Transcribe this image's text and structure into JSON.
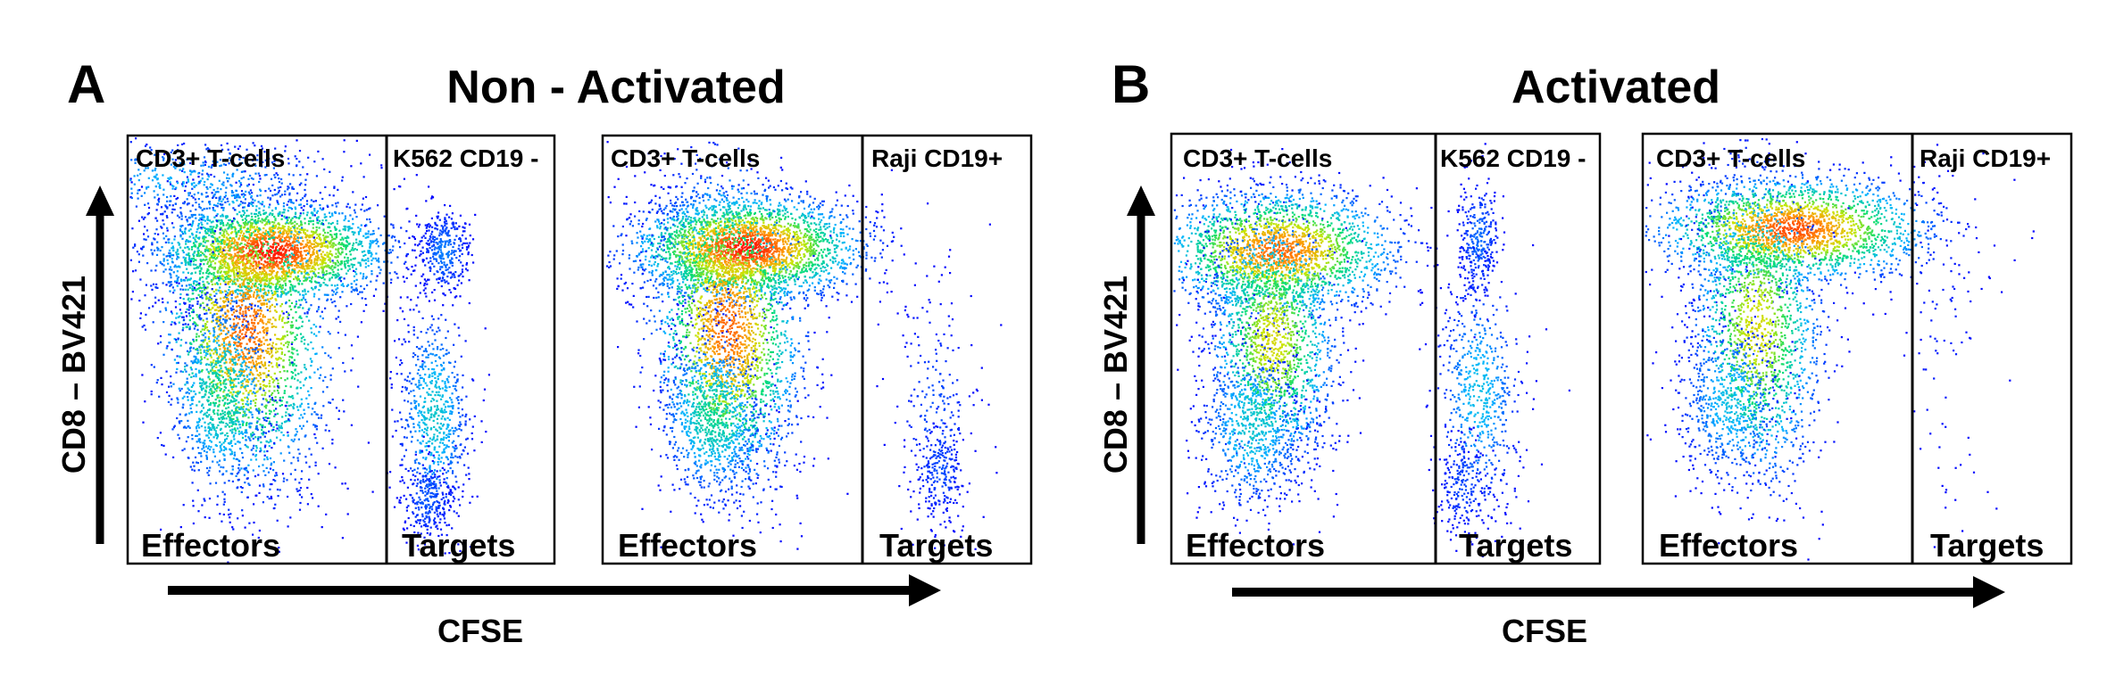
{
  "figure": {
    "panels": [
      {
        "letter": "A",
        "title": "Non - Activated",
        "x_axis_label": "CFSE",
        "y_axis_label": "CD8 – BV421",
        "plots": [
          {
            "gate_left_label": "CD3+ T-cells",
            "gate_right_label": "K562 CD19 -",
            "region_left_label": "Effectors",
            "region_right_label": "Targets"
          },
          {
            "gate_left_label": "CD3+ T-cells",
            "gate_right_label": "Raji CD19+",
            "region_left_label": "Effectors",
            "region_right_label": "Targets"
          }
        ]
      },
      {
        "letter": "B",
        "title": "Activated",
        "x_axis_label": "CFSE",
        "y_axis_label": "CD8 – BV421",
        "plots": [
          {
            "gate_left_label": "CD3+ T-cells",
            "gate_right_label": "K562 CD19 -",
            "region_left_label": "Effectors",
            "region_right_label": "Targets"
          },
          {
            "gate_left_label": "CD3+ T-cells",
            "gate_right_label": "Raji CD19+",
            "region_left_label": "Effectors",
            "region_right_label": "Targets"
          }
        ]
      }
    ]
  },
  "chart_data": [
    {
      "type": "scatter",
      "title": "Non - Activated",
      "subtitle": "CD3+ T-cells / K562 CD19 -",
      "xlabel": "CFSE",
      "ylabel": "CD8 – BV421",
      "series": [
        {
          "name": "Effectors",
          "points": "dense population, CFSE low, CD8 high to mid"
        },
        {
          "name": "Targets",
          "points": "K562 CD19 - cells, CFSE high"
        }
      ]
    },
    {
      "type": "scatter",
      "title": "Non - Activated",
      "subtitle": "CD3+ T-cells / Raji CD19+",
      "xlabel": "CFSE",
      "ylabel": "CD8 – BV421",
      "series": [
        {
          "name": "Effectors"
        },
        {
          "name": "Targets"
        }
      ]
    },
    {
      "type": "scatter",
      "title": "Activated",
      "subtitle": "CD3+ T-cells / K562 CD19 -",
      "xlabel": "CFSE",
      "ylabel": "CD8 – BV421",
      "series": [
        {
          "name": "Effectors"
        },
        {
          "name": "Targets"
        }
      ]
    },
    {
      "type": "scatter",
      "title": "Activated",
      "subtitle": "CD3+ T-cells / Raji CD19+",
      "xlabel": "CFSE",
      "ylabel": "CD8 – BV421",
      "series": [
        {
          "name": "Effectors"
        },
        {
          "name": "Targets"
        }
      ]
    }
  ],
  "colors": {
    "density_low": "#0000ff",
    "density_mid": "#00e070",
    "density_high": "#ff1a00",
    "ink": "#000000"
  }
}
